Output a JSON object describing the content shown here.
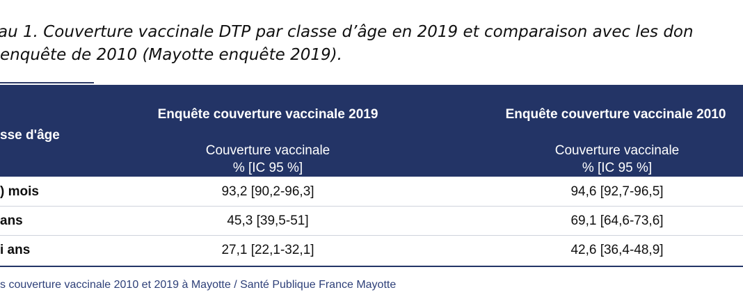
{
  "caption": {
    "line1": "au 1. Couverture vaccinale DTP par classe d’âge en 2019 et comparaison avec les don",
    "line2": "enquête de 2010 (Mayotte enquête 2019)."
  },
  "table": {
    "header": {
      "age_label": "sse d'âge",
      "group_2019": "Enquête couverture vaccinale 2019",
      "group_2010": "Enquête couverture vaccinale 2010",
      "sub_2019_line1": "Couverture vaccinale",
      "sub_2019_line2": "% [IC 95 %]",
      "sub_2010_line1": "Couverture vaccinale",
      "sub_2010_line2": "% [IC 95 %]"
    },
    "rows": [
      {
        "age": ") mois",
        "v2019": "93,2 [90,2-96,3]",
        "v2010": "94,6 [92,7-96,5]"
      },
      {
        "age": "ans",
        "v2019": "45,3 [39,5-51]",
        "v2010": "69,1 [64,6-73,6]"
      },
      {
        "age": "i ans",
        "v2019": "27,1 [22,1-32,1]",
        "v2010": "42,6 [36,4-48,9]"
      }
    ]
  },
  "source": "s couverture vaccinale 2010 et 2019 à Mayotte / Santé Publique France Mayotte",
  "colors": {
    "header_bg": "#233466",
    "source_text": "#2d3f78"
  }
}
